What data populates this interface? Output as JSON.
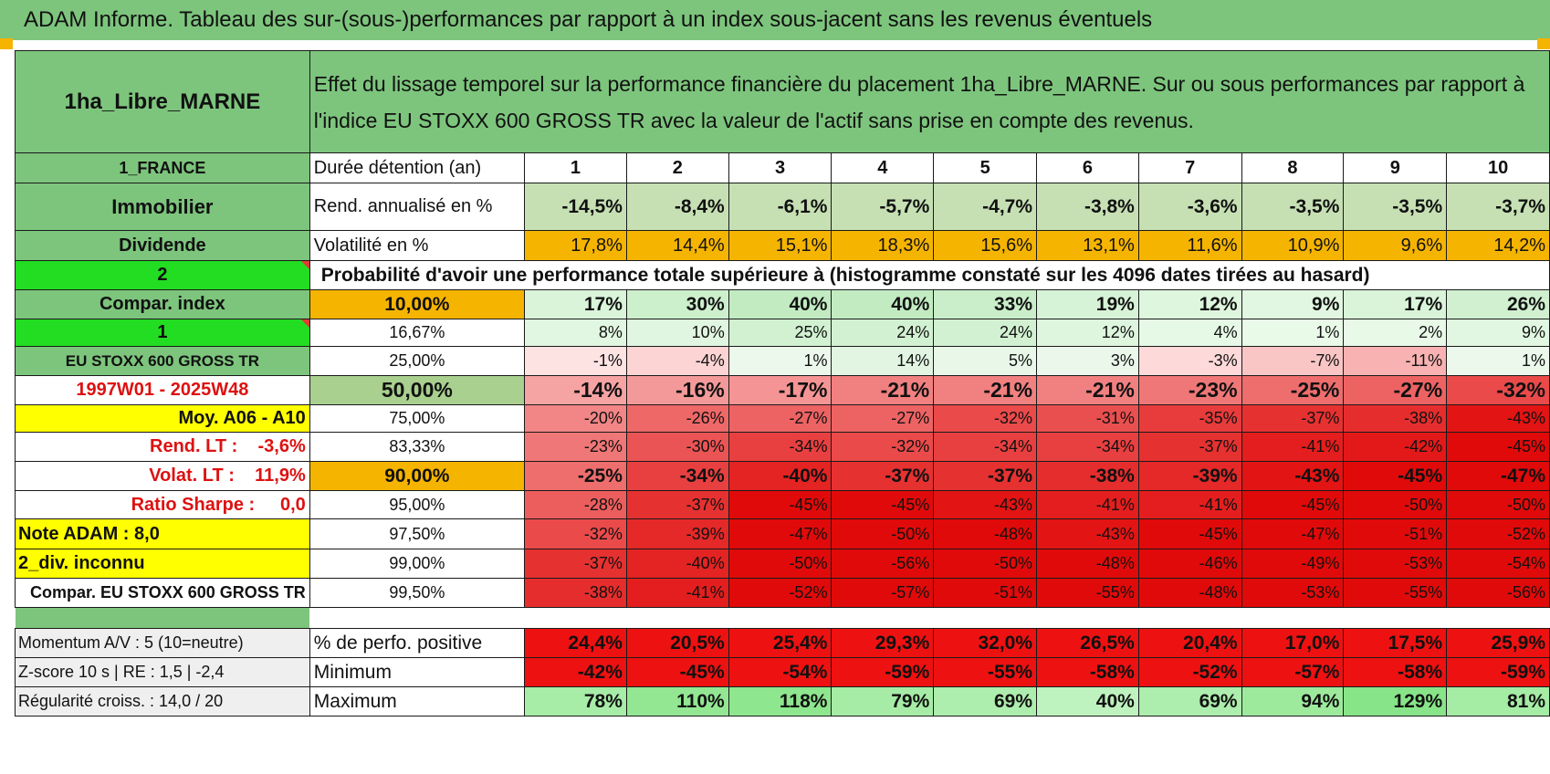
{
  "banner": {
    "title": "ADAM Informe. Tableau des sur-(sous-)performances par rapport à un index sous-jacent sans les revenus éventuels"
  },
  "header": {
    "fund": "1ha_Libre_MARNE",
    "description": "Effet du lissage temporel sur la performance financière du placement 1ha_Libre_MARNE. Sur ou sous performances par rapport à l'indice EU STOXX 600 GROSS TR avec la valeur de l'actif sans prise en compte des revenus."
  },
  "left_panel": {
    "country": "1_FRANCE",
    "asset_class": "Immobilier",
    "income_type": "Dividende",
    "selector_2": "2",
    "compar_index": "Compar. index",
    "selector_1": "1",
    "index_name": "EU STOXX 600 GROSS TR",
    "period": "1997W01 - 2025W48",
    "moy": "Moy. A06 - A10",
    "rend_lt": "Rend. LT :    -3,6%",
    "volat_lt": "Volat. LT :    11,9%",
    "sharpe": "Ratio Sharpe :     0,0",
    "note": "Note ADAM : 8,0",
    "div": "2_div. inconnu",
    "compar": "Compar. EU STOXX 600 GROSS TR",
    "momentum": "Momentum A/V : 5 (10=neutre)",
    "zscore": "Z-score 10 s | RE : 1,5 | -2,4",
    "regularite": "Régularité croiss. : 14,0 / 20"
  },
  "table": {
    "duration_label": "Durée détention (an)",
    "years": [
      "1",
      "2",
      "3",
      "4",
      "5",
      "6",
      "7",
      "8",
      "9",
      "10"
    ],
    "rend_label": "Rend. annualisé en %",
    "rend": [
      "-14,5%",
      "-8,4%",
      "-6,1%",
      "-5,7%",
      "-4,7%",
      "-3,8%",
      "-3,6%",
      "-3,5%",
      "-3,5%",
      "-3,7%"
    ],
    "vol_label": "Volatilité en %",
    "vol": [
      "17,8%",
      "14,4%",
      "15,1%",
      "18,3%",
      "15,6%",
      "13,1%",
      "11,6%",
      "10,9%",
      "9,6%",
      "14,2%"
    ],
    "prob_label": "Probabilité d'avoir une performance totale supérieure à (histogramme constaté sur les 4096 dates tirées au hasard)",
    "prob_rows": [
      {
        "pct": "10,00%",
        "values": [
          "17%",
          "30%",
          "40%",
          "40%",
          "33%",
          "19%",
          "12%",
          "9%",
          "17%",
          "26%"
        ]
      },
      {
        "pct": "16,67%",
        "values": [
          "8%",
          "10%",
          "25%",
          "24%",
          "24%",
          "12%",
          "4%",
          "1%",
          "2%",
          "9%"
        ]
      },
      {
        "pct": "25,00%",
        "values": [
          "-1%",
          "-4%",
          "1%",
          "14%",
          "5%",
          "3%",
          "-3%",
          "-7%",
          "-11%",
          "1%"
        ]
      },
      {
        "pct": "50,00%",
        "values": [
          "-14%",
          "-16%",
          "-17%",
          "-21%",
          "-21%",
          "-21%",
          "-23%",
          "-25%",
          "-27%",
          "-32%"
        ]
      },
      {
        "pct": "75,00%",
        "values": [
          "-20%",
          "-26%",
          "-27%",
          "-27%",
          "-32%",
          "-31%",
          "-35%",
          "-37%",
          "-38%",
          "-43%"
        ]
      },
      {
        "pct": "83,33%",
        "values": [
          "-23%",
          "-30%",
          "-34%",
          "-32%",
          "-34%",
          "-34%",
          "-37%",
          "-41%",
          "-42%",
          "-45%"
        ]
      },
      {
        "pct": "90,00%",
        "values": [
          "-25%",
          "-34%",
          "-40%",
          "-37%",
          "-37%",
          "-38%",
          "-39%",
          "-43%",
          "-45%",
          "-47%"
        ]
      },
      {
        "pct": "95,00%",
        "values": [
          "-28%",
          "-37%",
          "-45%",
          "-45%",
          "-43%",
          "-41%",
          "-41%",
          "-45%",
          "-50%",
          "-50%"
        ]
      },
      {
        "pct": "97,50%",
        "values": [
          "-32%",
          "-39%",
          "-47%",
          "-50%",
          "-48%",
          "-43%",
          "-45%",
          "-47%",
          "-51%",
          "-52%"
        ]
      },
      {
        "pct": "99,00%",
        "values": [
          "-37%",
          "-40%",
          "-50%",
          "-56%",
          "-50%",
          "-48%",
          "-46%",
          "-49%",
          "-53%",
          "-54%"
        ]
      },
      {
        "pct": "99,50%",
        "values": [
          "-38%",
          "-41%",
          "-52%",
          "-57%",
          "-51%",
          "-55%",
          "-48%",
          "-53%",
          "-55%",
          "-56%"
        ]
      }
    ],
    "pos_label": "% de perfo. positive",
    "pos": [
      "24,4%",
      "20,5%",
      "25,4%",
      "29,3%",
      "32,0%",
      "26,5%",
      "20,4%",
      "17,0%",
      "17,5%",
      "25,9%"
    ],
    "min_label": "Minimum",
    "min": [
      "-42%",
      "-45%",
      "-54%",
      "-59%",
      "-55%",
      "-58%",
      "-52%",
      "-57%",
      "-58%",
      "-59%"
    ],
    "max_label": "Maximum",
    "max": [
      "78%",
      "110%",
      "118%",
      "79%",
      "69%",
      "40%",
      "69%",
      "94%",
      "129%",
      "81%"
    ]
  },
  "colors": {
    "green": "#7dc57d",
    "bright_green": "#22dd22",
    "yellow": "#ffff00",
    "orange": "#f5b400",
    "light_green": "#c6e0b4",
    "red_text": "#dd1111"
  }
}
